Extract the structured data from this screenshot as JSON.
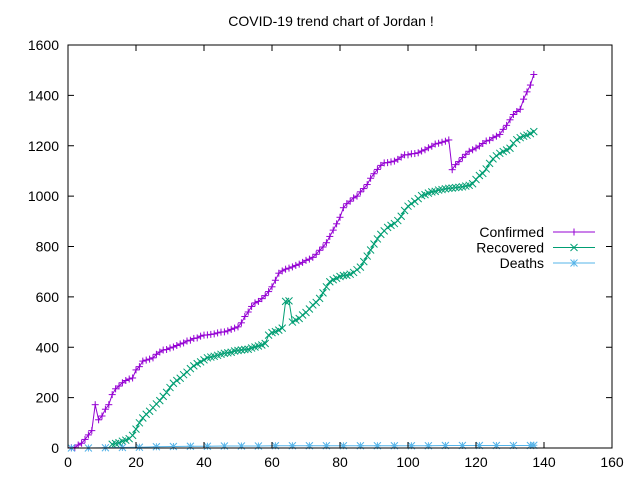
{
  "chart_data": {
    "type": "line",
    "title": "COVID-19 trend chart of Jordan !",
    "xlabel": "",
    "ylabel": "",
    "xlim": [
      0,
      160
    ],
    "ylim": [
      0,
      1600
    ],
    "xticks": [
      0,
      20,
      40,
      60,
      80,
      100,
      120,
      140,
      160
    ],
    "yticks": [
      0,
      200,
      400,
      600,
      800,
      1000,
      1200,
      1400,
      1600
    ],
    "grid": false,
    "legend_position": "right-middle",
    "series": [
      {
        "name": "Confirmed",
        "color": "#9400d3",
        "marker": "plus",
        "points": [
          [
            1,
            1
          ],
          [
            2,
            1
          ],
          [
            3,
            12
          ],
          [
            4,
            19
          ],
          [
            5,
            34
          ],
          [
            6,
            52
          ],
          [
            7,
            69
          ],
          [
            8,
            172
          ],
          [
            9,
            112
          ],
          [
            10,
            127
          ],
          [
            11,
            154
          ],
          [
            12,
            172
          ],
          [
            13,
            212
          ],
          [
            14,
            235
          ],
          [
            15,
            246
          ],
          [
            16,
            259
          ],
          [
            17,
            268
          ],
          [
            18,
            274
          ],
          [
            19,
            278
          ],
          [
            20,
            310
          ],
          [
            21,
            323
          ],
          [
            22,
            345
          ],
          [
            23,
            349
          ],
          [
            24,
            353
          ],
          [
            25,
            358
          ],
          [
            26,
            372
          ],
          [
            27,
            381
          ],
          [
            28,
            389
          ],
          [
            29,
            391
          ],
          [
            30,
            397
          ],
          [
            31,
            401
          ],
          [
            32,
            407
          ],
          [
            33,
            413
          ],
          [
            34,
            417
          ],
          [
            35,
            425
          ],
          [
            36,
            428
          ],
          [
            37,
            435
          ],
          [
            38,
            437
          ],
          [
            39,
            444
          ],
          [
            40,
            448
          ],
          [
            41,
            449
          ],
          [
            42,
            451
          ],
          [
            43,
            453
          ],
          [
            44,
            457
          ],
          [
            45,
            460
          ],
          [
            46,
            461
          ],
          [
            47,
            465
          ],
          [
            48,
            471
          ],
          [
            49,
            476
          ],
          [
            50,
            481
          ],
          [
            51,
            497
          ],
          [
            52,
            522
          ],
          [
            53,
            540
          ],
          [
            54,
            562
          ],
          [
            55,
            576
          ],
          [
            56,
            582
          ],
          [
            57,
            593
          ],
          [
            58,
            605
          ],
          [
            59,
            621
          ],
          [
            60,
            640
          ],
          [
            61,
            666
          ],
          [
            62,
            694
          ],
          [
            63,
            703
          ],
          [
            64,
            710
          ],
          [
            65,
            714
          ],
          [
            66,
            719
          ],
          [
            67,
            725
          ],
          [
            68,
            730
          ],
          [
            69,
            737
          ],
          [
            70,
            745
          ],
          [
            71,
            750
          ],
          [
            72,
            757
          ],
          [
            73,
            769
          ],
          [
            74,
            785
          ],
          [
            75,
            798
          ],
          [
            76,
            815
          ],
          [
            77,
            840
          ],
          [
            78,
            865
          ],
          [
            79,
            890
          ],
          [
            80,
            916
          ],
          [
            81,
            954
          ],
          [
            82,
            970
          ],
          [
            83,
            980
          ],
          [
            84,
            993
          ],
          [
            85,
            1000
          ],
          [
            86,
            1017
          ],
          [
            87,
            1030
          ],
          [
            88,
            1046
          ],
          [
            89,
            1071
          ],
          [
            90,
            1089
          ],
          [
            91,
            1106
          ],
          [
            92,
            1122
          ],
          [
            93,
            1132
          ],
          [
            94,
            1133
          ],
          [
            95,
            1136
          ],
          [
            96,
            1139
          ],
          [
            97,
            1146
          ],
          [
            98,
            1155
          ],
          [
            99,
            1164
          ],
          [
            100,
            1164
          ],
          [
            101,
            1168
          ],
          [
            102,
            1169
          ],
          [
            103,
            1172
          ],
          [
            104,
            1179
          ],
          [
            105,
            1184
          ],
          [
            106,
            1192
          ],
          [
            107,
            1198
          ],
          [
            108,
            1207
          ],
          [
            109,
            1210
          ],
          [
            110,
            1214
          ],
          [
            111,
            1218
          ],
          [
            112,
            1223
          ],
          [
            113,
            1105
          ],
          [
            114,
            1125
          ],
          [
            115,
            1137
          ],
          [
            116,
            1153
          ],
          [
            117,
            1166
          ],
          [
            118,
            1178
          ],
          [
            119,
            1184
          ],
          [
            120,
            1191
          ],
          [
            121,
            1199
          ],
          [
            122,
            1209
          ],
          [
            123,
            1219
          ],
          [
            124,
            1222
          ],
          [
            125,
            1232
          ],
          [
            126,
            1238
          ],
          [
            127,
            1245
          ],
          [
            128,
            1265
          ],
          [
            129,
            1281
          ],
          [
            130,
            1303
          ],
          [
            131,
            1324
          ],
          [
            132,
            1336
          ],
          [
            133,
            1345
          ],
          [
            134,
            1385
          ],
          [
            135,
            1414
          ],
          [
            136,
            1441
          ],
          [
            137,
            1483
          ]
        ]
      },
      {
        "name": "Recovered",
        "color": "#009e73",
        "marker": "cross",
        "points": [
          [
            13,
            15
          ],
          [
            14,
            18
          ],
          [
            15,
            21
          ],
          [
            16,
            27
          ],
          [
            17,
            31
          ],
          [
            18,
            37
          ],
          [
            19,
            50
          ],
          [
            20,
            75
          ],
          [
            21,
            100
          ],
          [
            22,
            119
          ],
          [
            23,
            134
          ],
          [
            24,
            146
          ],
          [
            25,
            160
          ],
          [
            26,
            175
          ],
          [
            27,
            188
          ],
          [
            28,
            205
          ],
          [
            29,
            221
          ],
          [
            30,
            240
          ],
          [
            31,
            257
          ],
          [
            32,
            268
          ],
          [
            33,
            277
          ],
          [
            34,
            291
          ],
          [
            35,
            301
          ],
          [
            36,
            315
          ],
          [
            37,
            326
          ],
          [
            38,
            335
          ],
          [
            39,
            342
          ],
          [
            40,
            350
          ],
          [
            41,
            358
          ],
          [
            42,
            361
          ],
          [
            43,
            364
          ],
          [
            44,
            368
          ],
          [
            45,
            372
          ],
          [
            46,
            376
          ],
          [
            47,
            378
          ],
          [
            48,
            380
          ],
          [
            49,
            385
          ],
          [
            50,
            387
          ],
          [
            51,
            389
          ],
          [
            52,
            391
          ],
          [
            53,
            392
          ],
          [
            54,
            397
          ],
          [
            55,
            401
          ],
          [
            56,
            405
          ],
          [
            57,
            409
          ],
          [
            58,
            415
          ],
          [
            59,
            448
          ],
          [
            60,
            458
          ],
          [
            61,
            462
          ],
          [
            62,
            468
          ],
          [
            63,
            476
          ],
          [
            64,
            582
          ],
          [
            65,
            584
          ],
          [
            66,
            500
          ],
          [
            67,
            508
          ],
          [
            68,
            514
          ],
          [
            69,
            528
          ],
          [
            70,
            538
          ],
          [
            71,
            552
          ],
          [
            72,
            568
          ],
          [
            73,
            578
          ],
          [
            74,
            594
          ],
          [
            75,
            616
          ],
          [
            76,
            640
          ],
          [
            77,
            660
          ],
          [
            78,
            668
          ],
          [
            79,
            674
          ],
          [
            80,
            681
          ],
          [
            81,
            685
          ],
          [
            82,
            686
          ],
          [
            83,
            690
          ],
          [
            84,
            697
          ],
          [
            85,
            708
          ],
          [
            86,
            718
          ],
          [
            87,
            740
          ],
          [
            88,
            762
          ],
          [
            89,
            786
          ],
          [
            90,
            810
          ],
          [
            91,
            830
          ],
          [
            92,
            848
          ],
          [
            93,
            862
          ],
          [
            94,
            876
          ],
          [
            95,
            884
          ],
          [
            96,
            891
          ],
          [
            97,
            903
          ],
          [
            98,
            920
          ],
          [
            99,
            943
          ],
          [
            100,
            960
          ],
          [
            101,
            970
          ],
          [
            102,
            979
          ],
          [
            103,
            990
          ],
          [
            104,
            1002
          ],
          [
            105,
            1006
          ],
          [
            106,
            1012
          ],
          [
            107,
            1017
          ],
          [
            108,
            1019
          ],
          [
            109,
            1024
          ],
          [
            110,
            1026
          ],
          [
            111,
            1029
          ],
          [
            112,
            1031
          ],
          [
            113,
            1032
          ],
          [
            114,
            1034
          ],
          [
            115,
            1035
          ],
          [
            116,
            1037
          ],
          [
            117,
            1040
          ],
          [
            118,
            1043
          ],
          [
            119,
            1049
          ],
          [
            120,
            1066
          ],
          [
            121,
            1082
          ],
          [
            122,
            1090
          ],
          [
            123,
            1108
          ],
          [
            124,
            1130
          ],
          [
            125,
            1148
          ],
          [
            126,
            1160
          ],
          [
            127,
            1170
          ],
          [
            128,
            1177
          ],
          [
            129,
            1183
          ],
          [
            130,
            1190
          ],
          [
            131,
            1210
          ],
          [
            132,
            1224
          ],
          [
            133,
            1232
          ],
          [
            134,
            1238
          ],
          [
            135,
            1242
          ],
          [
            136,
            1248
          ],
          [
            137,
            1256
          ]
        ]
      },
      {
        "name": "Deaths",
        "color": "#56b4e9",
        "marker": "star",
        "points": [
          [
            1,
            0
          ],
          [
            6,
            0
          ],
          [
            11,
            1
          ],
          [
            16,
            2
          ],
          [
            21,
            3
          ],
          [
            26,
            5
          ],
          [
            31,
            6
          ],
          [
            36,
            7
          ],
          [
            41,
            7
          ],
          [
            46,
            8
          ],
          [
            51,
            8
          ],
          [
            56,
            8
          ],
          [
            61,
            9
          ],
          [
            66,
            9
          ],
          [
            71,
            9
          ],
          [
            76,
            9
          ],
          [
            81,
            9
          ],
          [
            86,
            9
          ],
          [
            91,
            9
          ],
          [
            96,
            9
          ],
          [
            101,
            9
          ],
          [
            106,
            9
          ],
          [
            111,
            10
          ],
          [
            116,
            10
          ],
          [
            121,
            10
          ],
          [
            126,
            10
          ],
          [
            131,
            10
          ],
          [
            136,
            10
          ],
          [
            137,
            11
          ]
        ]
      }
    ]
  }
}
